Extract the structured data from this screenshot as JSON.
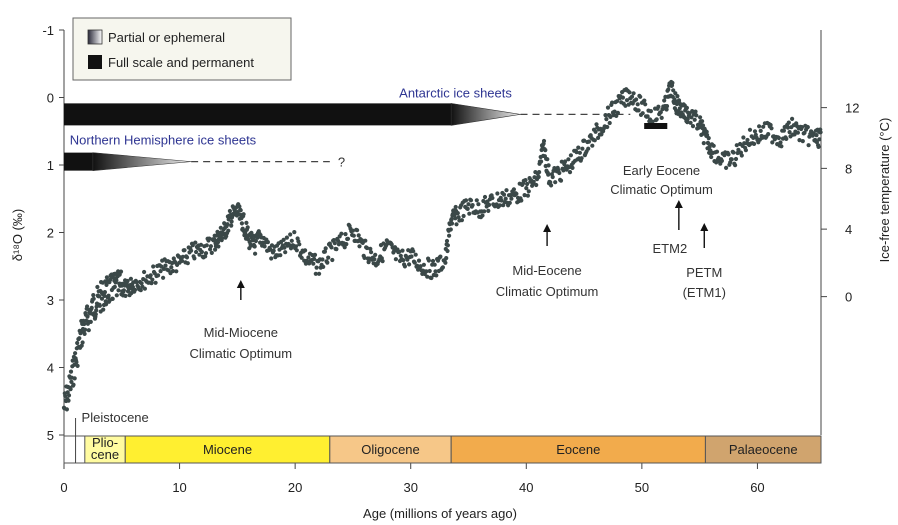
{
  "chart_data": {
    "type": "scatter",
    "xlabel": "Age (millions of years ago)",
    "ylabel": "δ¹⁸O (‰)",
    "ylabel_right": "Ice-free temperature (°C)",
    "xlim": [
      0,
      65.5
    ],
    "ylim": [
      5,
      -1
    ],
    "x_ticks": [
      0,
      10,
      20,
      30,
      40,
      50,
      60
    ],
    "x_tick_labels": [
      "0",
      "10",
      "20",
      "30",
      "40",
      "50",
      "60"
    ],
    "y_ticks": [
      -1,
      0,
      1,
      2,
      3,
      4,
      5
    ],
    "y_tick_labels": [
      "-1",
      "0",
      "1",
      "2",
      "3",
      "4",
      "5"
    ],
    "right_ticks": [
      {
        "value": 12,
        "d18o": 0.15,
        "label": "12"
      },
      {
        "value": 8,
        "d18o": 1.05,
        "label": "8"
      },
      {
        "value": 4,
        "d18o": 1.95,
        "label": "4"
      },
      {
        "value": 0,
        "d18o": 2.95,
        "label": "0"
      }
    ],
    "series": [
      {
        "color": "#3b4848",
        "x": [
          0,
          0.5,
          1,
          1.5,
          2,
          2.5,
          3,
          3.5,
          4,
          4.5,
          5,
          5.5,
          6,
          7,
          8,
          9,
          10,
          11,
          12,
          13,
          13.5,
          14,
          14.5,
          15,
          15.5,
          16,
          16.5,
          17,
          18,
          19,
          20,
          21,
          22,
          23,
          24,
          25,
          26,
          27,
          28,
          29,
          30,
          31,
          32,
          33,
          33.5,
          34,
          35,
          36,
          37,
          38,
          39,
          40,
          41,
          41.5,
          42,
          43,
          44,
          45,
          46,
          47,
          48,
          49,
          50,
          51,
          52,
          52.5,
          53,
          53.5,
          54,
          55,
          55.5,
          56,
          57,
          58,
          59,
          60,
          61,
          62,
          63,
          64,
          65
        ],
        "y": [
          4.6,
          4.3,
          3.9,
          3.5,
          3.3,
          3.1,
          3.0,
          2.9,
          2.85,
          2.8,
          2.8,
          2.85,
          2.75,
          2.7,
          2.6,
          2.5,
          2.45,
          2.3,
          2.25,
          2.15,
          2.05,
          1.95,
          1.75,
          1.7,
          1.85,
          2.1,
          2.2,
          2.05,
          2.3,
          2.25,
          2.1,
          2.4,
          2.5,
          2.3,
          2.15,
          1.95,
          2.25,
          2.4,
          2.2,
          2.4,
          2.35,
          2.5,
          2.55,
          2.4,
          1.8,
          1.75,
          1.6,
          1.65,
          1.55,
          1.5,
          1.45,
          1.35,
          1.2,
          0.7,
          1.2,
          1.1,
          0.95,
          0.75,
          0.55,
          0.3,
          0.1,
          -0.05,
          0.15,
          0.3,
          0.15,
          -0.15,
          0.1,
          0.2,
          0.25,
          0.4,
          0.6,
          0.75,
          0.95,
          0.9,
          0.65,
          0.55,
          0.5,
          0.6,
          0.45,
          0.55,
          0.6
        ]
      }
    ],
    "legend": {
      "position": "top-left",
      "items": [
        {
          "label": "Partial or ephemeral",
          "style": "gradient"
        },
        {
          "label": "Full scale and permanent",
          "style": "solid"
        }
      ]
    },
    "ice_bars": [
      {
        "label": "Antarctic ice sheets",
        "solid_x": [
          0,
          33.5
        ],
        "taper_x": [
          33.5,
          39.5
        ],
        "dashed_x": [
          39.5,
          49
        ],
        "y": 0.25
      },
      {
        "label": "Northern Hemisphere ice sheets",
        "solid_x": [
          0,
          2.5
        ],
        "taper_x": [
          2.5,
          11
        ],
        "dashed_x": [
          11,
          23
        ],
        "y": 0.95,
        "suffix": "?"
      }
    ],
    "epochs": [
      {
        "name": "Plio-\ncene",
        "line1": "Plio-",
        "line2": "cene",
        "start": 1.8,
        "end": 5.3,
        "color": "#fffba0"
      },
      {
        "name": "Miocene",
        "start": 5.3,
        "end": 23,
        "color": "#ffef30"
      },
      {
        "name": "Oligocene",
        "start": 23,
        "end": 33.5,
        "color": "#f6c788"
      },
      {
        "name": "Eocene",
        "start": 33.5,
        "end": 55.5,
        "color": "#f2ab4c"
      },
      {
        "name": "Palaeocene",
        "start": 55.5,
        "end": 65.5,
        "color": "#d0a46e"
      }
    ],
    "pleistocene": {
      "label": "Pleistocene",
      "x": 1.0
    },
    "annotations": [
      {
        "id": "mid-miocene",
        "line1": "Mid-Miocene",
        "line2": "Climatic Optimum",
        "arrow_x": 15.3
      },
      {
        "id": "mid-eocene",
        "line1": "Mid-Eocene",
        "line2": "Climatic Optimum",
        "arrow_x": 41.8
      },
      {
        "id": "early-eocene",
        "line1": "Early Eocene",
        "line2": "Climatic Optimum",
        "bar_x": [
          50.2,
          52.2
        ]
      },
      {
        "id": "etm2",
        "line1": "ETM2",
        "arrow_x": 53.2
      },
      {
        "id": "petm",
        "line1": "PETM",
        "line2": "(ETM1)",
        "arrow_x": 55.4
      }
    ]
  }
}
